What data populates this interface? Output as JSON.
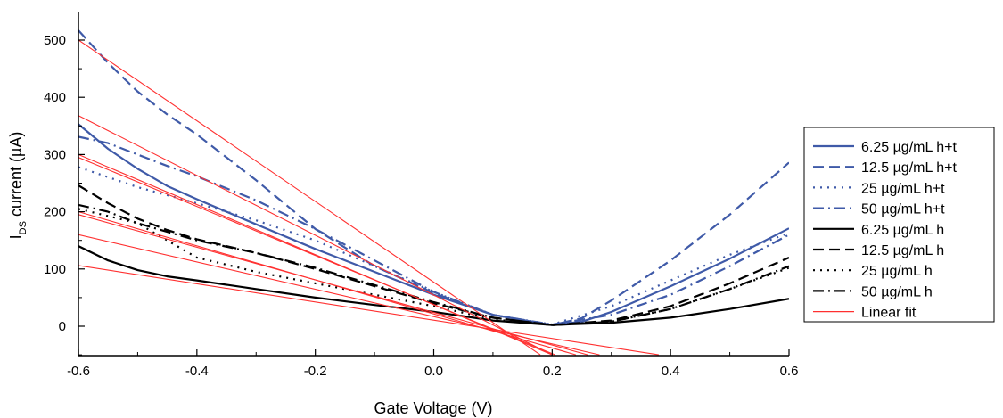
{
  "chart_data": {
    "type": "line",
    "title": "",
    "xlabel": "Gate Voltage (V)",
    "ylabel_main": "I",
    "ylabel_sub": "DS",
    "ylabel_rest": " current (µA)",
    "xlim": [
      -0.6,
      0.6
    ],
    "ylim": [
      -50,
      550
    ],
    "xticks": [
      -0.6,
      -0.4,
      -0.2,
      0.0,
      0.2,
      0.4,
      0.6
    ],
    "xtick_labels": [
      "-0.6",
      "-0.4",
      "-0.2",
      "0.0",
      "0.2",
      "0.4",
      "0.6"
    ],
    "yticks": [
      0,
      100,
      200,
      300,
      400,
      500
    ],
    "ytick_labels": [
      "0",
      "100",
      "200",
      "300",
      "400",
      "500"
    ],
    "grid": false,
    "legend_position": "right",
    "series": [
      {
        "name": "6.25 µg/mL h+t",
        "color": "#3f5aa8",
        "dash": "solid",
        "x": [
          -0.6,
          -0.55,
          -0.5,
          -0.45,
          -0.4,
          -0.3,
          -0.2,
          -0.1,
          0.0,
          0.1,
          0.2,
          0.25,
          0.3,
          0.4,
          0.5,
          0.6
        ],
        "y": [
          353,
          310,
          275,
          245,
          222,
          178,
          135,
          95,
          55,
          20,
          2,
          8,
          25,
          70,
          118,
          171
        ]
      },
      {
        "name": "12.5 µg/mL h+t",
        "color": "#3f5aa8",
        "dash": "dashed",
        "x": [
          -0.6,
          -0.55,
          -0.5,
          -0.45,
          -0.4,
          -0.3,
          -0.2,
          -0.1,
          0.0,
          0.1,
          0.2,
          0.25,
          0.3,
          0.4,
          0.5,
          0.6
        ],
        "y": [
          517,
          460,
          410,
          370,
          335,
          255,
          170,
          105,
          58,
          20,
          2,
          14,
          45,
          115,
          195,
          286
        ]
      },
      {
        "name": "25 µg/mL h+t",
        "color": "#3f5aa8",
        "dash": "dotted",
        "x": [
          -0.6,
          -0.5,
          -0.4,
          -0.3,
          -0.2,
          -0.1,
          0.0,
          0.1,
          0.2,
          0.3,
          0.4,
          0.5,
          0.6
        ],
        "y": [
          278,
          243,
          215,
          185,
          150,
          105,
          60,
          20,
          3,
          35,
          80,
          125,
          163
        ]
      },
      {
        "name": "50 µg/mL h+t",
        "color": "#3f5aa8",
        "dash": "dashdot",
        "x": [
          -0.6,
          -0.55,
          -0.5,
          -0.45,
          -0.4,
          -0.3,
          -0.2,
          -0.1,
          0.0,
          0.1,
          0.2,
          0.3,
          0.4,
          0.5,
          0.6
        ],
        "y": [
          331,
          320,
          300,
          280,
          262,
          220,
          170,
          115,
          60,
          20,
          3,
          20,
          55,
          105,
          160
        ]
      },
      {
        "name": "6.25 µg/mL h",
        "color": "#000000",
        "dash": "solid",
        "x": [
          -0.6,
          -0.55,
          -0.5,
          -0.45,
          -0.4,
          -0.3,
          -0.2,
          -0.1,
          0.0,
          0.1,
          0.2,
          0.3,
          0.4,
          0.5,
          0.6
        ],
        "y": [
          140,
          115,
          98,
          87,
          80,
          65,
          50,
          37,
          25,
          10,
          2,
          6,
          15,
          30,
          48
        ]
      },
      {
        "name": "12.5 µg/mL h",
        "color": "#000000",
        "dash": "dashed",
        "x": [
          -0.6,
          -0.55,
          -0.5,
          -0.45,
          -0.4,
          -0.3,
          -0.2,
          -0.1,
          0.0,
          0.1,
          0.2,
          0.3,
          0.4,
          0.5,
          0.6
        ],
        "y": [
          246,
          215,
          188,
          168,
          152,
          128,
          100,
          70,
          40,
          15,
          2,
          10,
          35,
          75,
          120
        ]
      },
      {
        "name": "25 µg/mL h",
        "color": "#000000",
        "dash": "dotted",
        "x": [
          -0.6,
          -0.5,
          -0.4,
          -0.3,
          -0.2,
          -0.1,
          0.0,
          0.1,
          0.2,
          0.3,
          0.4,
          0.5,
          0.6
        ],
        "y": [
          205,
          180,
          120,
          95,
          75,
          55,
          35,
          12,
          2,
          8,
          30,
          65,
          102
        ]
      },
      {
        "name": "50 µg/mL h",
        "color": "#000000",
        "dash": "dashdot",
        "x": [
          -0.6,
          -0.55,
          -0.5,
          -0.45,
          -0.4,
          -0.3,
          -0.2,
          -0.1,
          0.0,
          0.1,
          0.2,
          0.3,
          0.4,
          0.5,
          0.6
        ],
        "y": [
          212,
          200,
          180,
          165,
          150,
          128,
          102,
          72,
          42,
          15,
          2,
          8,
          30,
          65,
          105
        ]
      }
    ],
    "linear_fit": {
      "name": "Linear fit",
      "color": "#ff3030",
      "lines": [
        {
          "x": [
            -0.6,
            0.18
          ],
          "y": [
            500,
            -50
          ]
        },
        {
          "x": [
            -0.6,
            0.2
          ],
          "y": [
            368,
            -50
          ]
        },
        {
          "x": [
            -0.6,
            0.2
          ],
          "y": [
            300,
            -50
          ]
        },
        {
          "x": [
            -0.6,
            0.205
          ],
          "y": [
            295,
            -50
          ]
        },
        {
          "x": [
            -0.6,
            0.24
          ],
          "y": [
            200,
            -50
          ]
        },
        {
          "x": [
            -0.6,
            0.26
          ],
          "y": [
            195,
            -50
          ]
        },
        {
          "x": [
            -0.6,
            0.28
          ],
          "y": [
            160,
            -50
          ]
        },
        {
          "x": [
            -0.6,
            0.38
          ],
          "y": [
            106,
            -50
          ]
        }
      ]
    }
  }
}
